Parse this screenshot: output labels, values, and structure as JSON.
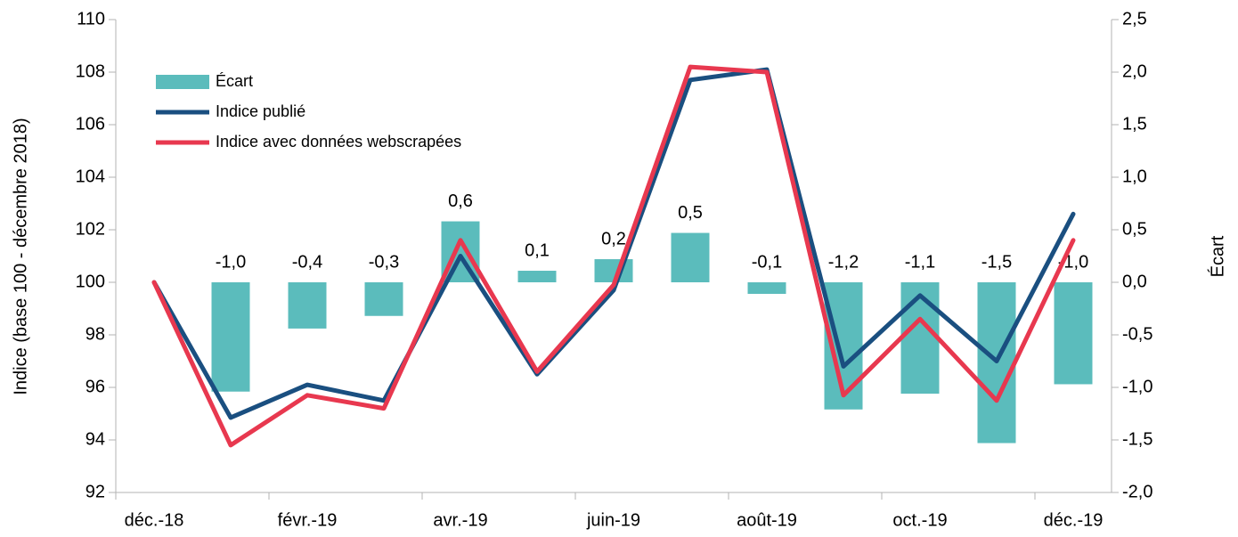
{
  "chart_data": {
    "type": "bar",
    "categories": [
      "déc.-18",
      null,
      "févr.-19",
      null,
      "avr.-19",
      null,
      "juin-19",
      null,
      "août-19",
      null,
      "oct.-19",
      null,
      "déc.-19"
    ],
    "ylabel": "Indice (base 100 - décembre 2018)",
    "y2label": "Écart",
    "ylim": [
      92,
      110
    ],
    "yticks": [
      92,
      94,
      96,
      98,
      100,
      102,
      104,
      106,
      108,
      110
    ],
    "y2lim": [
      -2,
      2.5
    ],
    "y2ticks": [
      {
        "value": -2,
        "label": "-2,0"
      },
      {
        "value": -1.5,
        "label": "-1,5"
      },
      {
        "value": -1,
        "label": "-1,0"
      },
      {
        "value": -0.5,
        "label": "-0,5"
      },
      {
        "value": 0,
        "label": "0,0"
      },
      {
        "value": 0.5,
        "label": "0,5"
      },
      {
        "value": 1,
        "label": "1,0"
      },
      {
        "value": 1.5,
        "label": "1,5"
      },
      {
        "value": 2,
        "label": "2,0"
      },
      {
        "value": 2.5,
        "label": "2,5"
      }
    ],
    "legend": "upper left",
    "grid": false,
    "series": [
      {
        "name": "Écart",
        "type": "bar",
        "axis": "y2",
        "color": "#5bbcbc",
        "values": [
          null,
          -1.04,
          -0.44,
          -0.32,
          0.58,
          0.11,
          0.22,
          0.47,
          -0.11,
          -1.21,
          -1.06,
          -1.53,
          -0.97
        ],
        "value_labels": [
          null,
          "-1,0",
          "-0,4",
          "-0,3",
          "0,6",
          "0,1",
          "0,2",
          "0,5",
          "-0,1",
          "-1,2",
          "-1,1",
          "-1,5",
          "-1,0"
        ]
      },
      {
        "name": "Indice publié",
        "type": "line",
        "color": "#1a4f80",
        "values": [
          100,
          94.85,
          96.1,
          95.5,
          101.0,
          96.5,
          99.7,
          107.7,
          108.1,
          96.8,
          99.5,
          97.0,
          102.6
        ]
      },
      {
        "name": "Indice avec données webscrapées",
        "type": "line",
        "color": "#e8384f",
        "values": [
          100,
          93.8,
          95.7,
          95.2,
          101.6,
          96.6,
          99.9,
          108.2,
          108.0,
          95.7,
          98.6,
          95.5,
          101.6
        ]
      }
    ]
  }
}
